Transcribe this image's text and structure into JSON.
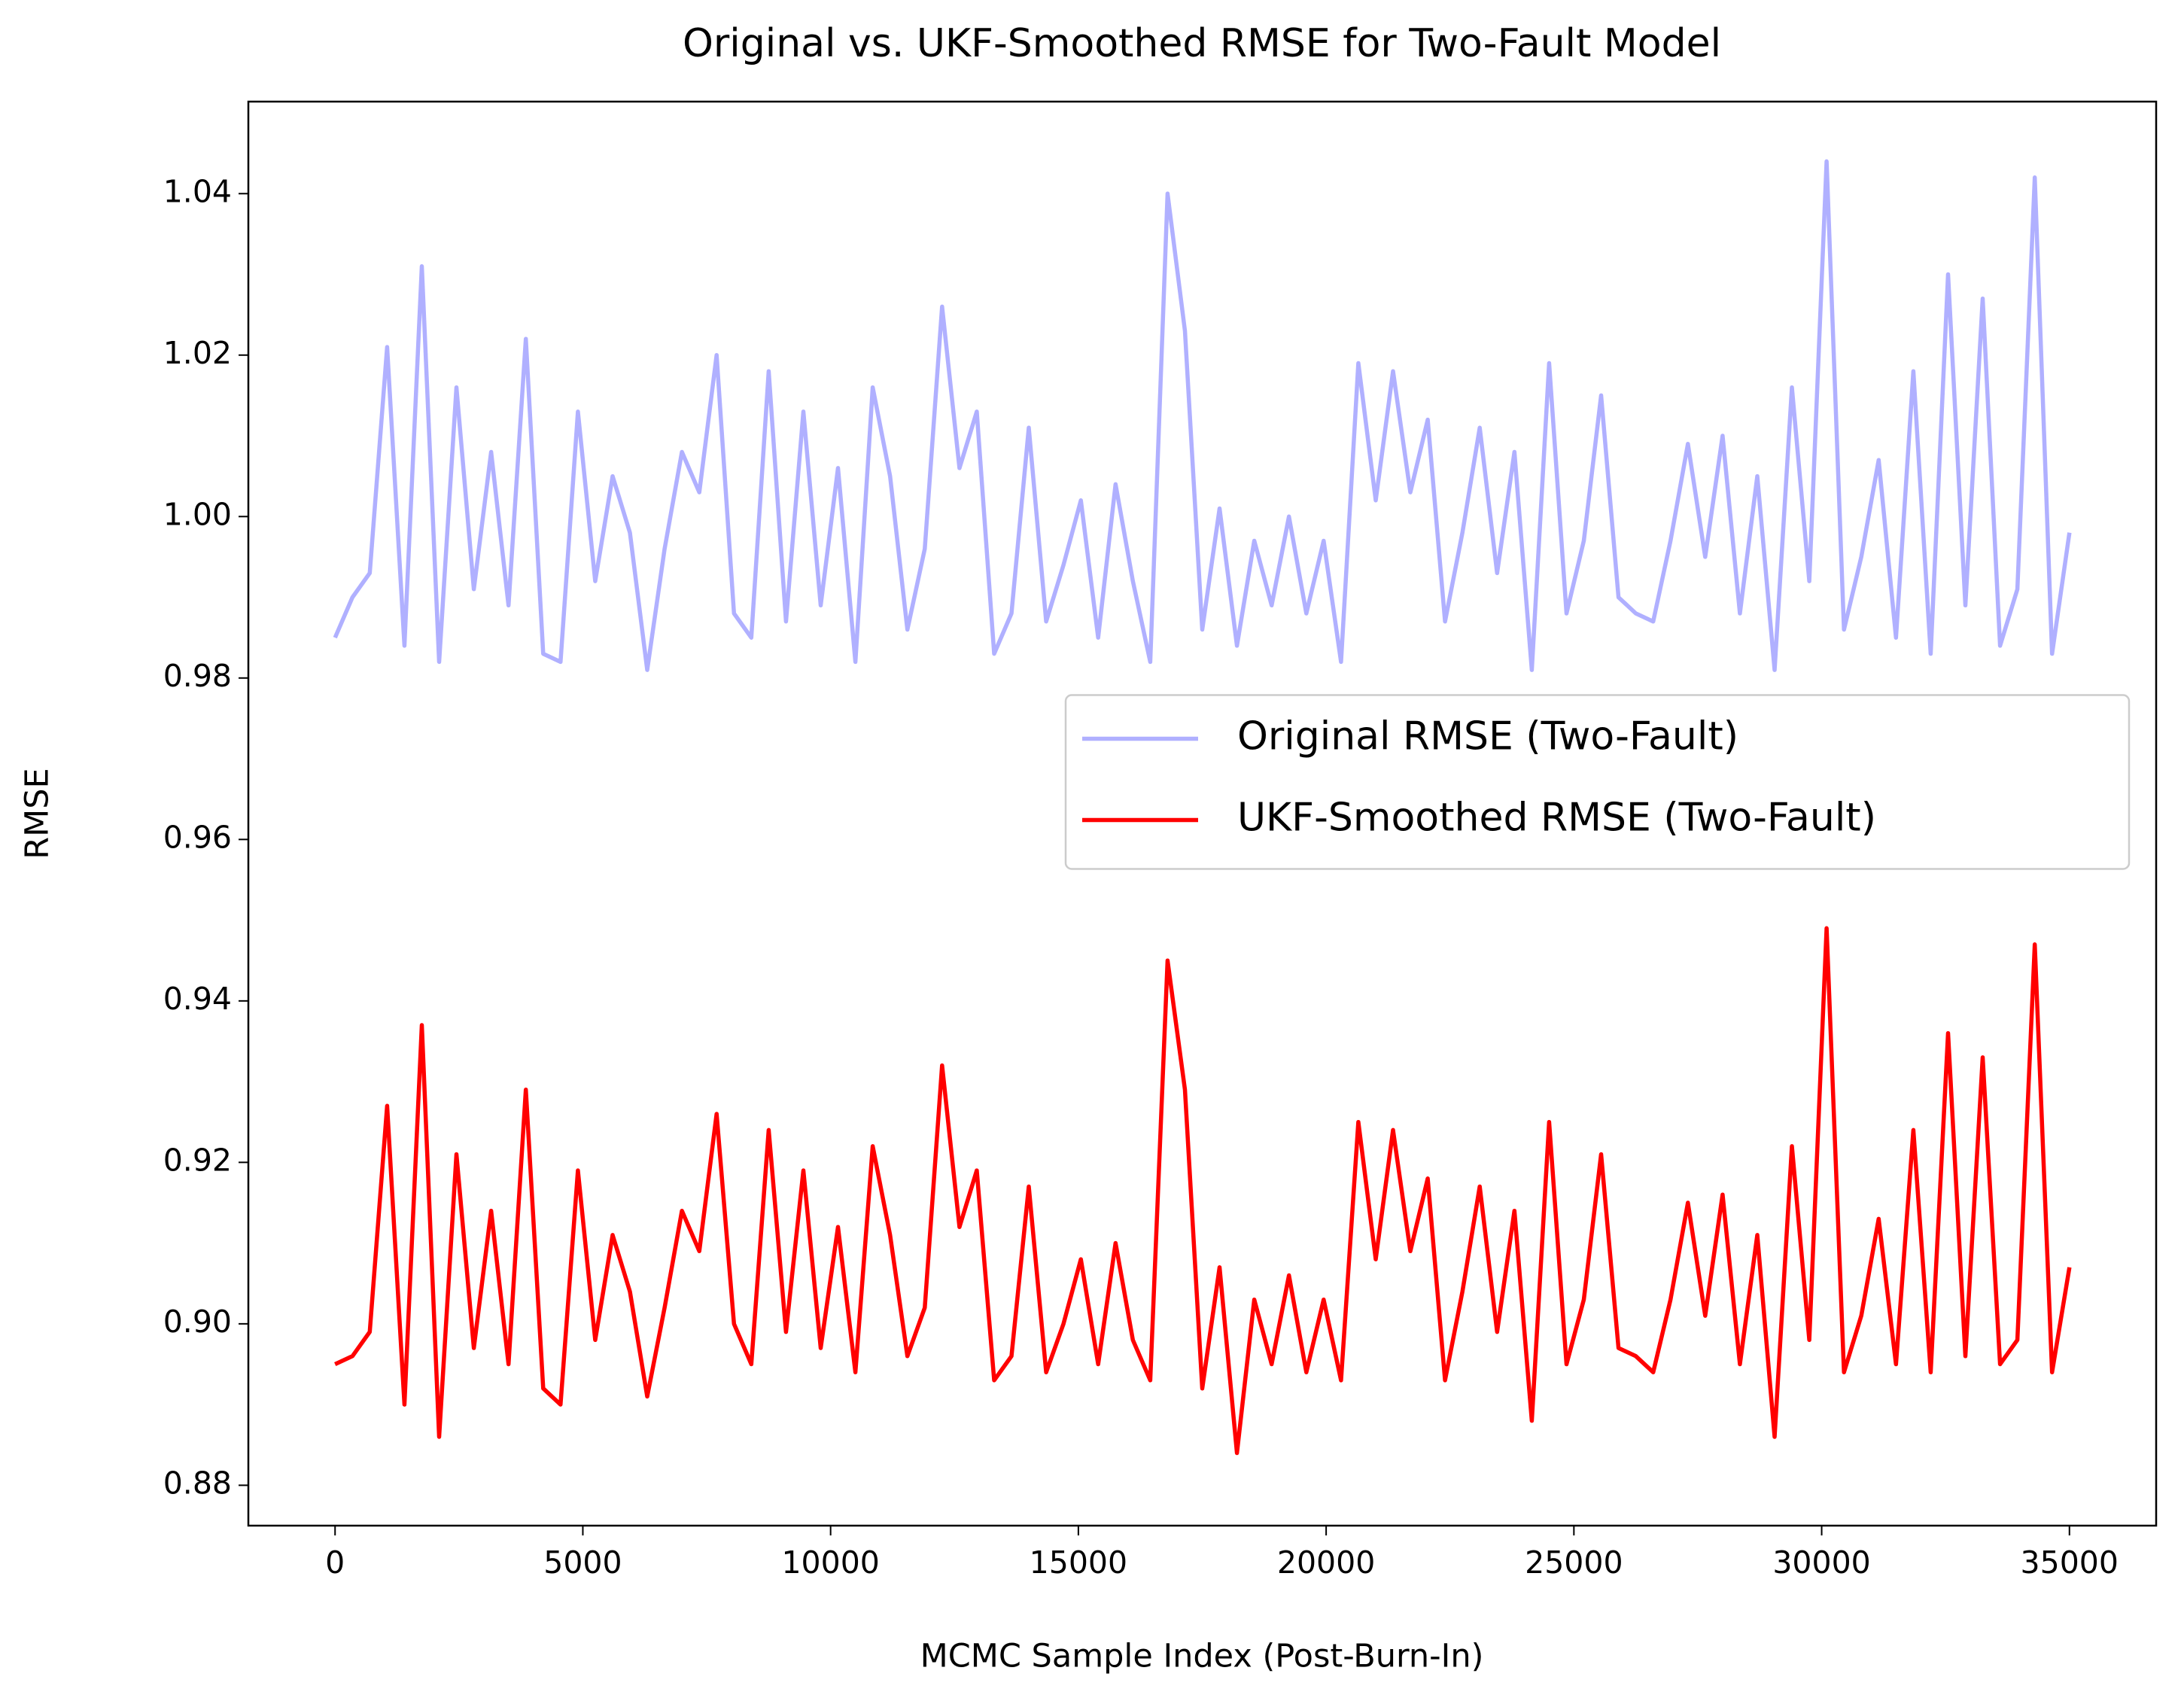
{
  "chart_data": {
    "type": "line",
    "title": "Original vs. UKF-Smoothed RMSE for Two-Fault Model",
    "xlabel": "MCMC Sample Index (Post-Burn-In)",
    "ylabel": "RMSE",
    "x": [
      0,
      350,
      700,
      1050,
      1400,
      1750,
      2100,
      2450,
      2800,
      3150,
      3500,
      3850,
      4200,
      4550,
      4900,
      5250,
      5600,
      5950,
      6300,
      6650,
      7000,
      7350,
      7700,
      8050,
      8400,
      8750,
      9100,
      9450,
      9800,
      10150,
      10500,
      10850,
      11200,
      11550,
      11900,
      12250,
      12600,
      12950,
      13300,
      13650,
      14000,
      14350,
      14700,
      15050,
      15400,
      15750,
      16100,
      16450,
      16800,
      17150,
      17500,
      17850,
      18200,
      18550,
      18900,
      19250,
      19600,
      19950,
      20300,
      20650,
      21000,
      21350,
      21700,
      22050,
      22400,
      22750,
      23100,
      23450,
      23800,
      24150,
      24500,
      24850,
      25200,
      25550,
      25900,
      26250,
      26600,
      26950,
      27300,
      27650,
      28000,
      28350,
      28700,
      29050,
      29400,
      29750,
      30100,
      30450,
      30800,
      31150,
      31500,
      31850,
      32200,
      32550,
      32900,
      33250,
      33600,
      33950,
      34300,
      34650,
      35000
    ],
    "series": [
      {
        "name": "Original RMSE (Two-Fault)",
        "color": "#b0b0ff",
        "values": [
          0.985,
          0.99,
          0.993,
          1.021,
          0.984,
          1.031,
          0.982,
          1.016,
          0.991,
          1.008,
          0.989,
          1.022,
          0.983,
          0.982,
          1.013,
          0.992,
          1.005,
          0.998,
          0.981,
          0.996,
          1.008,
          1.003,
          1.02,
          0.988,
          0.985,
          1.018,
          0.987,
          1.013,
          0.989,
          1.006,
          0.982,
          1.016,
          1.005,
          0.986,
          0.996,
          1.026,
          1.006,
          1.013,
          0.983,
          0.988,
          1.011,
          0.987,
          0.994,
          1.002,
          0.985,
          1.004,
          0.992,
          0.982,
          1.04,
          1.023,
          0.986,
          1.001,
          0.984,
          0.997,
          0.989,
          1.0,
          0.988,
          0.997,
          0.982,
          1.019,
          1.002,
          1.018,
          1.003,
          1.012,
          0.987,
          0.998,
          1.011,
          0.993,
          1.008,
          0.981,
          1.019,
          0.988,
          0.997,
          1.015,
          0.99,
          0.988,
          0.987,
          0.997,
          1.009,
          0.995,
          1.01,
          0.988,
          1.005,
          0.981,
          1.016,
          0.992,
          1.044,
          0.986,
          0.995,
          1.007,
          0.985,
          1.018,
          0.983,
          1.03,
          0.989,
          1.027,
          0.984,
          0.991,
          1.042,
          0.983,
          0.998
        ]
      },
      {
        "name": "UKF-Smoothed RMSE (Two-Fault)",
        "color": "#ff0000",
        "values": [
          0.895,
          0.896,
          0.899,
          0.927,
          0.89,
          0.937,
          0.886,
          0.921,
          0.897,
          0.914,
          0.895,
          0.929,
          0.892,
          0.89,
          0.919,
          0.898,
          0.911,
          0.904,
          0.891,
          0.902,
          0.914,
          0.909,
          0.926,
          0.9,
          0.895,
          0.924,
          0.899,
          0.919,
          0.897,
          0.912,
          0.894,
          0.922,
          0.911,
          0.896,
          0.902,
          0.932,
          0.912,
          0.919,
          0.893,
          0.896,
          0.917,
          0.894,
          0.9,
          0.908,
          0.895,
          0.91,
          0.898,
          0.893,
          0.945,
          0.929,
          0.892,
          0.907,
          0.884,
          0.903,
          0.895,
          0.906,
          0.894,
          0.903,
          0.893,
          0.925,
          0.908,
          0.924,
          0.909,
          0.918,
          0.893,
          0.904,
          0.917,
          0.899,
          0.914,
          0.888,
          0.925,
          0.895,
          0.903,
          0.921,
          0.897,
          0.896,
          0.894,
          0.903,
          0.915,
          0.901,
          0.916,
          0.895,
          0.911,
          0.886,
          0.922,
          0.898,
          0.949,
          0.894,
          0.901,
          0.913,
          0.895,
          0.924,
          0.894,
          0.936,
          0.896,
          0.933,
          0.895,
          0.898,
          0.947,
          0.894,
          0.907
        ]
      }
    ],
    "xlim": [
      -1750,
      36750
    ],
    "ylim": [
      0.875,
      1.0514
    ],
    "xticks": [
      0,
      5000,
      10000,
      15000,
      20000,
      25000,
      30000,
      35000
    ],
    "yticks": [
      0.88,
      {
        "value": 0.9,
        "label": "0.90"
      },
      0.92,
      0.94,
      0.96,
      0.98,
      {
        "value": 1.0,
        "label": "1.00"
      },
      1.02,
      1.04
    ],
    "grid": false,
    "legend": "center right"
  }
}
